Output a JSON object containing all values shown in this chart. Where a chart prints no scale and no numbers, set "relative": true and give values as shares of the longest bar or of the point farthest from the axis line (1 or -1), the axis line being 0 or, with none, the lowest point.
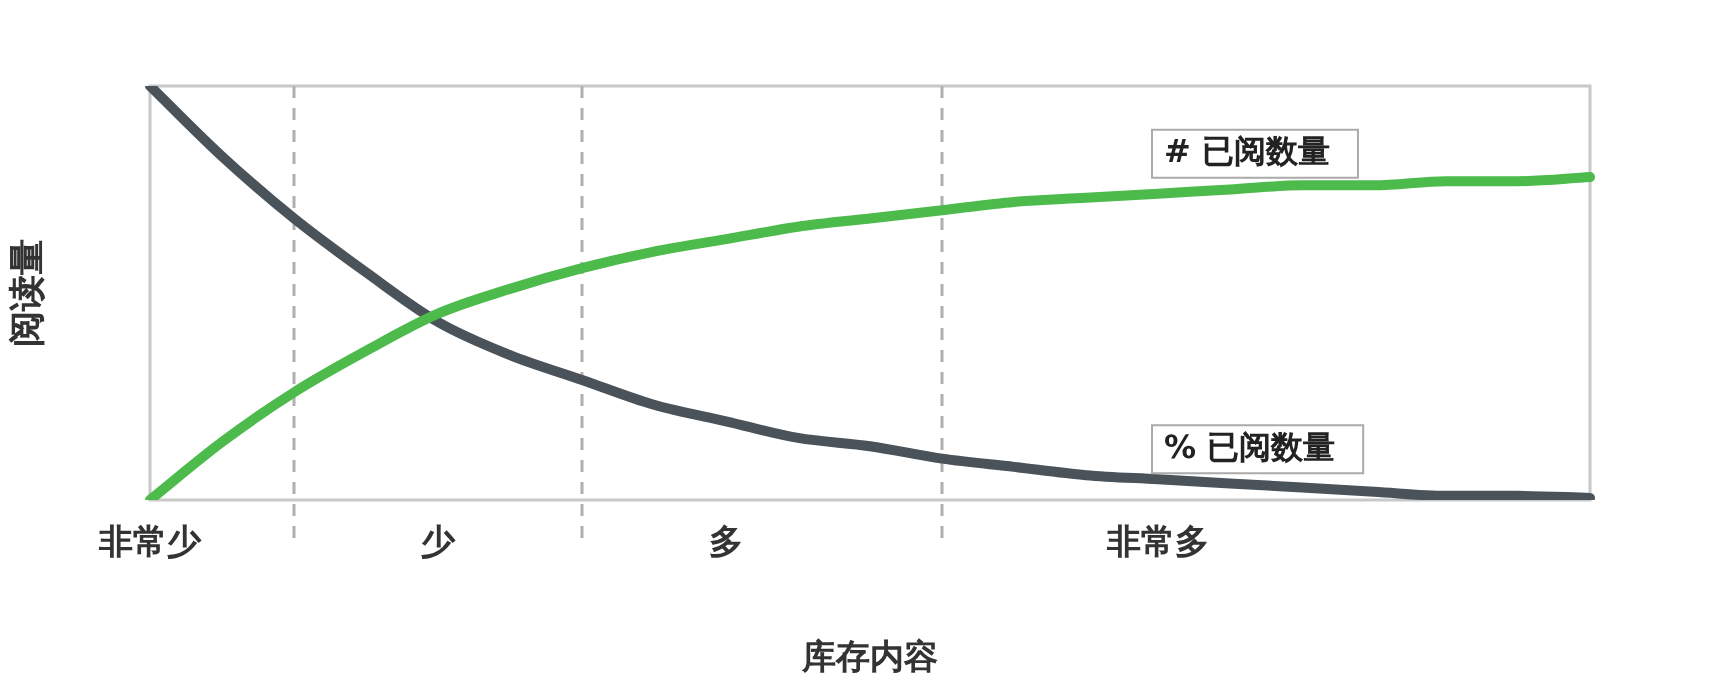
{
  "chart_data": {
    "type": "line",
    "relative": true,
    "xlabel": "库存内容",
    "ylabel": "阅读量",
    "categories": [
      "非常少",
      null,
      null,
      null,
      "少",
      null,
      null,
      null,
      "多",
      null,
      null,
      null,
      null,
      null,
      "非常多",
      null,
      null,
      null,
      null,
      null,
      null
    ],
    "series": [
      {
        "name": "# 已阅数量",
        "color": "#4cbb4c",
        "values": [
          0,
          0.14,
          0.26,
          0.36,
          0.45,
          0.51,
          0.56,
          0.6,
          0.63,
          0.66,
          0.68,
          0.7,
          0.72,
          0.73,
          0.74,
          0.75,
          0.76,
          0.76,
          0.77,
          0.77,
          0.78
        ]
      },
      {
        "name": "% 已阅数量",
        "color": "#4a525a",
        "values": [
          1,
          0.83,
          0.68,
          0.55,
          0.43,
          0.35,
          0.29,
          0.23,
          0.19,
          0.15,
          0.13,
          0.1,
          0.08,
          0.06,
          0.05,
          0.04,
          0.03,
          0.02,
          0.01,
          0.01,
          0.005
        ]
      }
    ],
    "grid": "x",
    "legend": false,
    "marker": "none",
    "line_style": "solid"
  }
}
